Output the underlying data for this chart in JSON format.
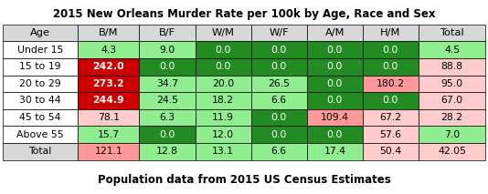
{
  "title": "2015 New Orleans Murder Rate per 100k by Age, Race and Sex",
  "subtitle": "Population data from 2015 US Census Estimates",
  "columns": [
    "Age",
    "B/M",
    "B/F",
    "W/M",
    "W/F",
    "A/M",
    "H/M",
    "Total"
  ],
  "rows": [
    [
      "Under 15",
      4.3,
      9.0,
      0.0,
      0.0,
      0.0,
      0.0,
      4.5
    ],
    [
      "15 to 19",
      242.0,
      0.0,
      0.0,
      0.0,
      0.0,
      0.0,
      88.8
    ],
    [
      "20 to 29",
      273.2,
      34.7,
      20.0,
      26.5,
      0.0,
      180.2,
      95.0
    ],
    [
      "30 to 44",
      244.9,
      24.5,
      18.2,
      6.6,
      0.0,
      0.0,
      67.0
    ],
    [
      "45 to 54",
      78.1,
      6.3,
      11.9,
      0.0,
      109.4,
      67.2,
      28.2
    ],
    [
      "Above 55",
      15.7,
      0.0,
      12.0,
      0.0,
      0.0,
      57.6,
      7.0
    ],
    [
      "Total",
      121.1,
      12.8,
      13.1,
      6.6,
      17.4,
      50.4,
      42.05
    ]
  ],
  "header_bg": "#d8d8d8",
  "age_col_bg": "#ffffff",
  "total_row_bg": "#d8d8d8",
  "color_very_high": "#cc0000",
  "color_high": "#ff9999",
  "color_medium": "#ffcccc",
  "color_low_pos": "#90ee90",
  "color_zero": "#228b22",
  "color_total_col_high": "#ffaaaa",
  "color_total_col_low": "#90ee90",
  "title_fontsize": 8.5,
  "subtitle_fontsize": 8.5,
  "cell_fontsize": 7.8,
  "header_fontsize": 8.2
}
